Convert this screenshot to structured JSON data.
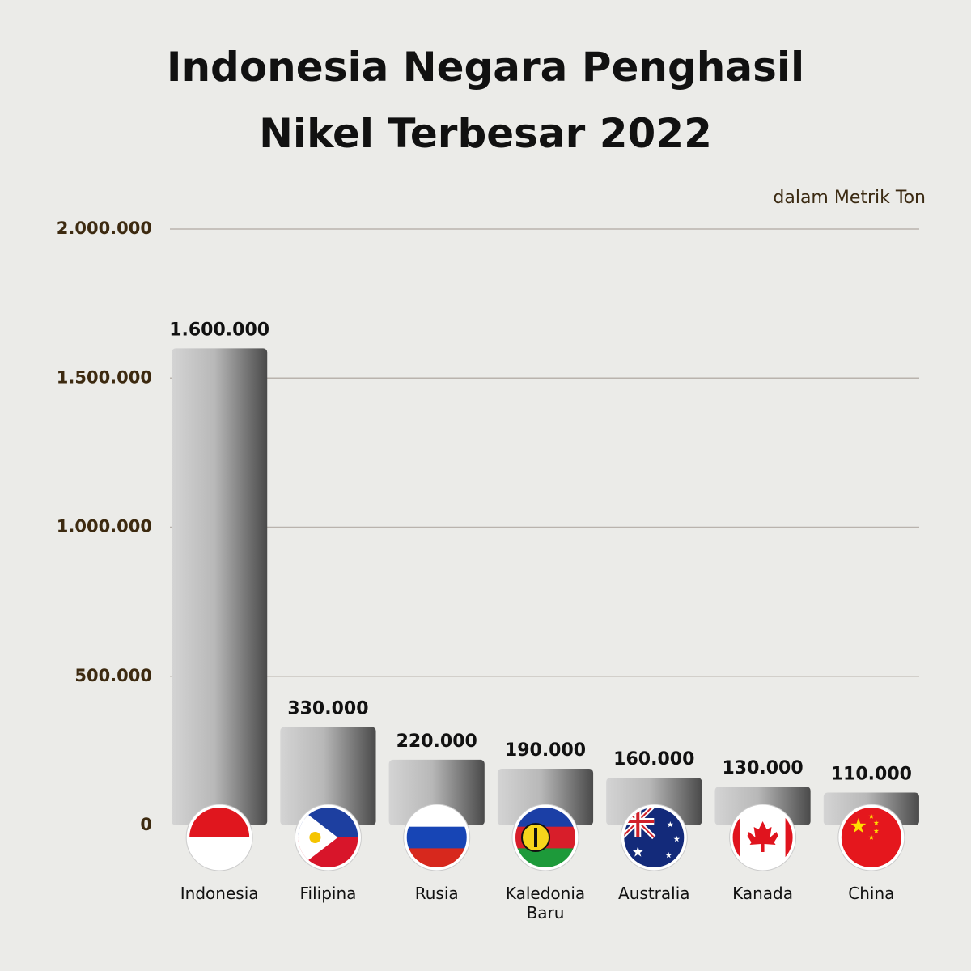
{
  "chart_data": {
    "type": "bar",
    "title": "Indonesia Negara Penghasil Nikel Terbesar 2022",
    "subtitle": "dalam Metrik Ton",
    "categories": [
      "Indonesia",
      "Filipina",
      "Rusia",
      "Kaledonia Baru",
      "Australia",
      "Kanada",
      "China"
    ],
    "values": [
      1600000,
      330000,
      220000,
      190000,
      160000,
      130000,
      110000
    ],
    "value_labels": [
      "1.600.000",
      "330.000",
      "220.000",
      "190.000",
      "160.000",
      "130.000",
      "110.000"
    ],
    "ylim": [
      0,
      2000000
    ],
    "yticks": [
      0,
      {
        "value": 500000,
        "label": "500.000"
      },
      {
        "value": 1000000,
        "label": "1.000.000"
      },
      {
        "value": 1500000,
        "label": "1.500.000"
      },
      {
        "value": 2000000,
        "label": "2.000.000"
      }
    ],
    "grid": true
  }
}
